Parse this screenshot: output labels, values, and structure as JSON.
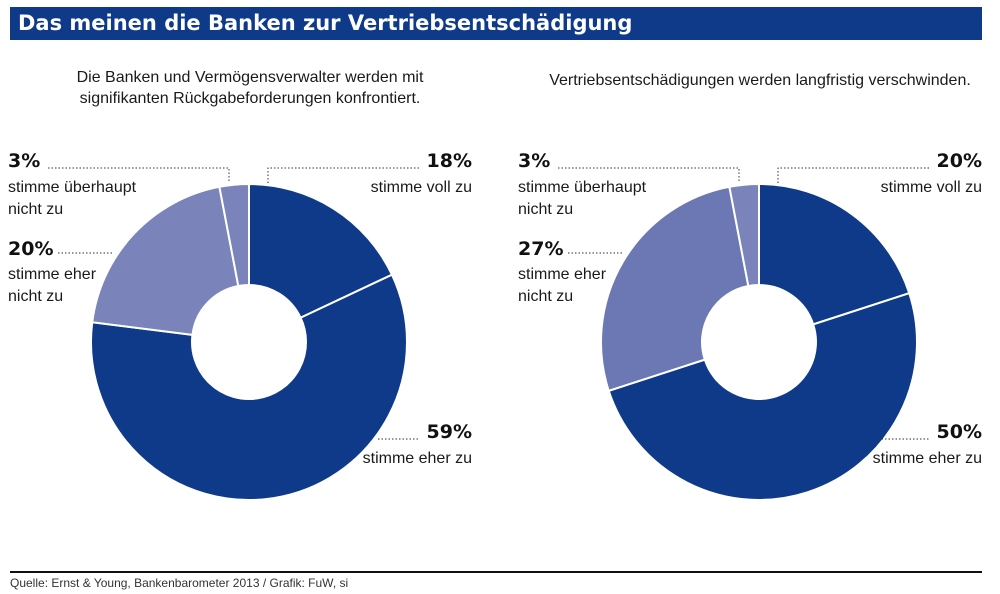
{
  "header": {
    "title": "Das meinen die Banken zur Vertriebsentschädigung"
  },
  "colors": {
    "dark": "#0f3a8a",
    "medium": "#6c78b4",
    "light": "#7a84bb",
    "bar": "#0f3a8a"
  },
  "chart_data": [
    {
      "type": "pie",
      "title": "Die Banken und Vermögensverwalter werden mit signifikanten Rückgabeforderungen konfrontiert.",
      "title_lines": [
        "Die Banken und Vermögensverwalter werden mit",
        "signifikanten Rückgabeforderungen konfrontiert."
      ],
      "donut": true,
      "series": [
        {
          "name": "stimme voll zu",
          "name_lines": [
            "stimme voll zu"
          ],
          "value": 18,
          "label": "18%",
          "color": "#0f3a8a"
        },
        {
          "name": "stimme eher zu",
          "name_lines": [
            "stimme eher zu"
          ],
          "value": 59,
          "label": "59%",
          "color": "#0f3a8a"
        },
        {
          "name": "stimme eher nicht zu",
          "name_lines": [
            "stimme eher",
            "nicht zu"
          ],
          "value": 20,
          "label": "20%",
          "color": "#7a84bb"
        },
        {
          "name": "stimme überhaupt nicht zu",
          "name_lines": [
            "stimme überhaupt",
            "nicht zu"
          ],
          "value": 3,
          "label": "3%",
          "color": "#7a84bb"
        }
      ]
    },
    {
      "type": "pie",
      "title": "Vertriebsentschädigungen werden langfristig verschwinden.",
      "title_lines": [
        "Vertriebsentschädigungen werden langfristig verschwinden."
      ],
      "donut": true,
      "series": [
        {
          "name": "stimme voll zu",
          "name_lines": [
            "stimme voll zu"
          ],
          "value": 20,
          "label": "20%",
          "color": "#0f3a8a"
        },
        {
          "name": "stimme eher zu",
          "name_lines": [
            "stimme eher zu"
          ],
          "value": 50,
          "label": "50%",
          "color": "#0f3a8a"
        },
        {
          "name": "stimme eher nicht zu",
          "name_lines": [
            "stimme eher",
            "nicht zu"
          ],
          "value": 27,
          "label": "27%",
          "color": "#6c78b4"
        },
        {
          "name": "stimme überhaupt nicht zu",
          "name_lines": [
            "stimme überhaupt",
            "nicht zu"
          ],
          "value": 3,
          "label": "3%",
          "color": "#7a84bb"
        }
      ]
    }
  ],
  "footer": {
    "source": "Quelle: Ernst & Young, Bankenbarometer 2013 / Grafik: FuW, si"
  }
}
